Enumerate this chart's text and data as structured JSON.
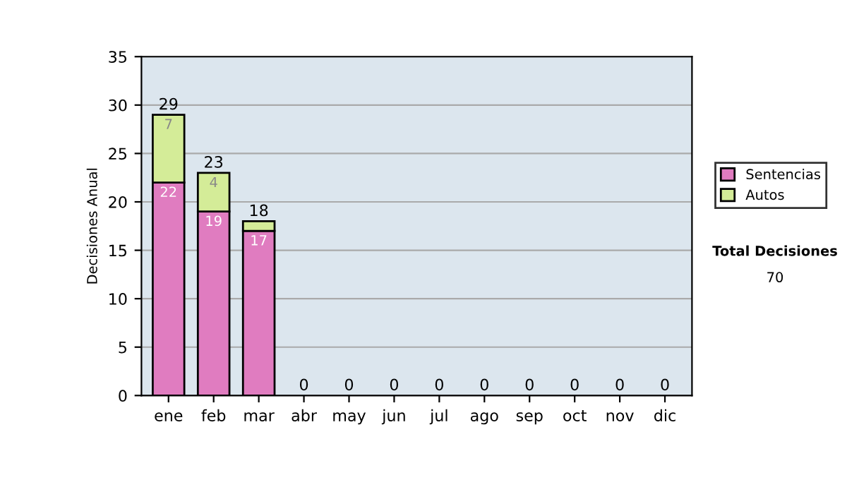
{
  "chart_data": {
    "type": "bar",
    "stacked": true,
    "ylabel": "Decisiones Anual",
    "categories": [
      "ene",
      "feb",
      "mar",
      "abr",
      "may",
      "jun",
      "jul",
      "ago",
      "sep",
      "oct",
      "nov",
      "dic"
    ],
    "series": [
      {
        "name": "Sentencias",
        "color": "#e07cc0",
        "values": [
          22,
          19,
          17,
          0,
          0,
          0,
          0,
          0,
          0,
          0,
          0,
          0
        ],
        "value_labels": [
          "22",
          "19",
          "17",
          null,
          null,
          null,
          null,
          null,
          null,
          null,
          null,
          null
        ]
      },
      {
        "name": "Autos",
        "color": "#d4ec98",
        "values": [
          7,
          4,
          1,
          0,
          0,
          0,
          0,
          0,
          0,
          0,
          0,
          0
        ],
        "value_labels": [
          "7",
          "4",
          null,
          null,
          null,
          null,
          null,
          null,
          null,
          null,
          null,
          null
        ]
      }
    ],
    "totals": [
      "29",
      "23",
      "18",
      "0",
      "0",
      "0",
      "0",
      "0",
      "0",
      "0",
      "0",
      "0"
    ],
    "ylim": [
      0,
      35
    ],
    "yticks": [
      0,
      5,
      10,
      15,
      20,
      25,
      30,
      35
    ],
    "grid": "y",
    "legend": "right",
    "annotations": [
      "Total Decisiones",
      "70"
    ]
  }
}
